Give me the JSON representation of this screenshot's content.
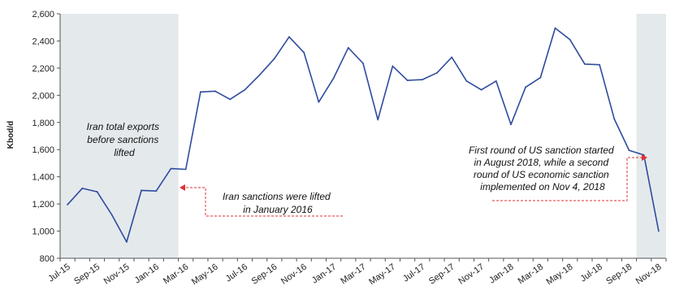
{
  "chart_data": {
    "type": "line",
    "ylabel": "Kbod/d",
    "xlabel": "",
    "ylim": [
      800,
      2600
    ],
    "yticks": [
      "800",
      "1,000",
      "1,200",
      "1,400",
      "1,600",
      "1,800",
      "2,000",
      "2,200",
      "2,400",
      "2,600"
    ],
    "ytick_values": [
      800,
      1000,
      1200,
      1400,
      1600,
      1800,
      2000,
      2200,
      2400,
      2600
    ],
    "x_tick_labels": [
      "Jul-15",
      "Sep-15",
      "Nov-15",
      "Jan-16",
      "Mar-16",
      "May-16",
      "Jul-16",
      "Sep-16",
      "Nov-16",
      "Jan-17",
      "Mar-17",
      "May-17",
      "Jul-17",
      "Sep-17",
      "Nov-17",
      "Jan-18",
      "Mar-18",
      "May-18",
      "Jul-18",
      "Sep-18",
      "Nov-18"
    ],
    "x": [
      "Jul-15",
      "Aug-15",
      "Sep-15",
      "Oct-15",
      "Nov-15",
      "Dec-15",
      "Jan-16",
      "Feb-16",
      "Mar-16",
      "Apr-16",
      "May-16",
      "Jun-16",
      "Jul-16",
      "Aug-16",
      "Sep-16",
      "Oct-16",
      "Nov-16",
      "Dec-16",
      "Jan-17",
      "Feb-17",
      "Mar-17",
      "Apr-17",
      "May-17",
      "Jun-17",
      "Jul-17",
      "Aug-17",
      "Sep-17",
      "Oct-17",
      "Nov-17",
      "Dec-17",
      "Jan-18",
      "Feb-18",
      "Mar-18",
      "Apr-18",
      "May-18",
      "Jun-18",
      "Jul-18",
      "Aug-18",
      "Sep-18",
      "Oct-18",
      "Nov-18"
    ],
    "series": [
      {
        "values": [
          1195,
          1315,
          1290,
          1120,
          920,
          1300,
          1295,
          1460,
          1455,
          2025,
          2030,
          1970,
          2040,
          2150,
          2270,
          2430,
          2315,
          1950,
          2125,
          2350,
          2235,
          1820,
          2215,
          2110,
          2115,
          2165,
          2280,
          2105,
          2040,
          2105,
          1785,
          2060,
          2130,
          2495,
          2410,
          2230,
          2225,
          1825,
          1595,
          1560,
          1000
        ]
      }
    ],
    "shaded_regions": [
      {
        "from": "Jul-15",
        "to": "Feb-16",
        "color": "#e4e9ec"
      },
      {
        "from": "Oct-18",
        "to": "Nov-18",
        "color": "#e4e9ec"
      }
    ],
    "annotations": [
      {
        "lines": [
          "Iran total exports",
          "before sanctions",
          "lifted"
        ]
      },
      {
        "lines": [
          "Iran sanctions were lifted",
          "in January 2016"
        ]
      },
      {
        "lines": [
          "First round of US sanction started",
          "in August 2018, while a second",
          "round of US economic sanction",
          "implemented on Nov 4, 2018"
        ]
      }
    ],
    "line_color": "#2e4b9e",
    "arrow_color": "#e03030",
    "grid": false,
    "legend": "none"
  }
}
